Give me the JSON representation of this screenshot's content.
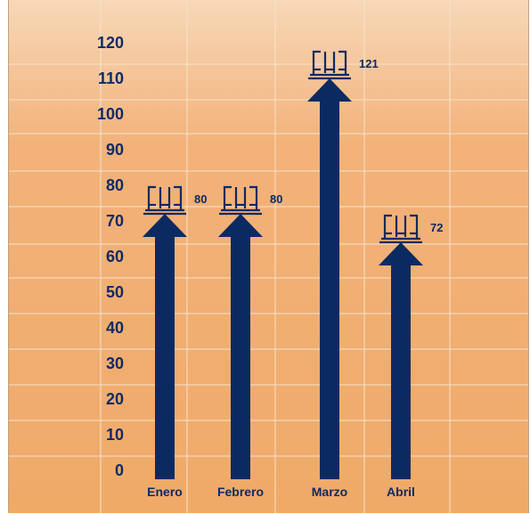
{
  "chart_data": {
    "type": "bar",
    "title": "",
    "xlabel": "",
    "ylabel": "",
    "categories": [
      "Enero",
      "Febrero",
      "Marzo",
      "Abril"
    ],
    "values": [
      80,
      80,
      121,
      72
    ],
    "ylim": [
      0,
      120
    ],
    "y_ticks": [
      "0",
      "10",
      "20",
      "30",
      "40",
      "50",
      "60",
      "70",
      "80",
      "90",
      "100",
      "110",
      "120"
    ],
    "grid": true,
    "legend": "none",
    "marker_icon": "pallet-icon"
  },
  "colors": {
    "background_top": "#f7d8b8",
    "background_bottom": "#efaa68",
    "grid": "#f6e3cc",
    "text": "#0d2a66",
    "bar": "#0c2a62"
  }
}
